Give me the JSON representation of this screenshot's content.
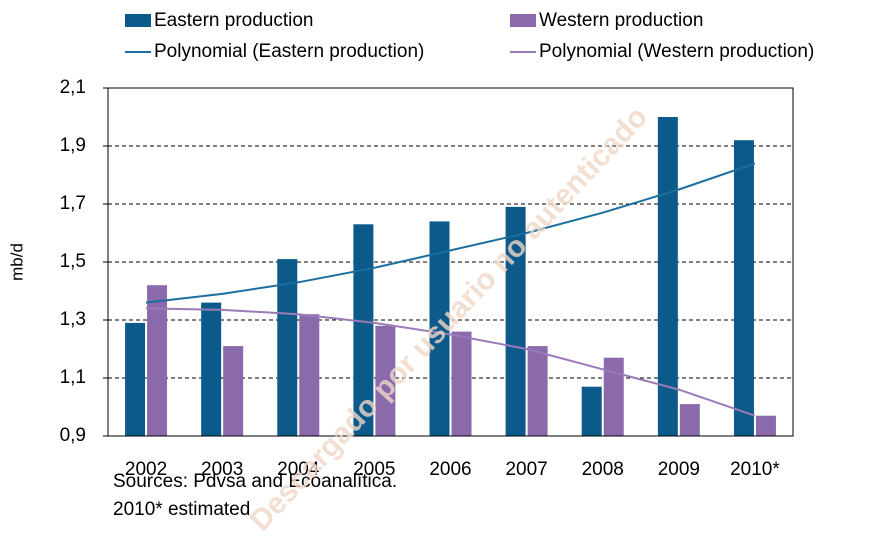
{
  "chart_data": {
    "type": "bar",
    "y_label": "mb/d",
    "categories": [
      "2002",
      "2003",
      "2004",
      "2005",
      "2006",
      "2007",
      "2008",
      "2009",
      "2010*"
    ],
    "series": [
      {
        "name": "Eastern production",
        "color": "#0b5a8a",
        "values": [
          1.29,
          1.36,
          1.51,
          1.63,
          1.64,
          1.69,
          1.07,
          2.0,
          1.92
        ]
      },
      {
        "name": "Western production",
        "color": "#8a6aab",
        "values": [
          1.42,
          1.21,
          1.32,
          1.28,
          1.26,
          1.21,
          1.17,
          1.01,
          0.97
        ]
      }
    ],
    "trendlines": [
      {
        "name": "Polynomial (Eastern production)",
        "color": "#1b6fa0",
        "values": [
          1.36,
          1.39,
          1.43,
          1.48,
          1.54,
          1.6,
          1.67,
          1.75,
          1.84
        ]
      },
      {
        "name": "Polynomial (Western production)",
        "color": "#9a7ab8",
        "values": [
          1.34,
          1.335,
          1.32,
          1.29,
          1.25,
          1.2,
          1.13,
          1.06,
          0.97
        ]
      }
    ],
    "ylim": [
      0.9,
      2.1
    ],
    "yticks": [
      {
        "value": 0.9,
        "label": "0,9"
      },
      {
        "value": 1.1,
        "label": "1,1"
      },
      {
        "value": 1.3,
        "label": "1,3"
      },
      {
        "value": 1.5,
        "label": "1,5"
      },
      {
        "value": 1.7,
        "label": "1,7"
      },
      {
        "value": 1.9,
        "label": "1,9"
      },
      {
        "value": 2.1,
        "label": "2,1"
      }
    ],
    "grid": true,
    "notes": [
      "Sources: Pdvsa and Ecoanalítica.",
      "2010* estimated"
    ],
    "watermark": "Descargado por usuario no autenticado"
  }
}
